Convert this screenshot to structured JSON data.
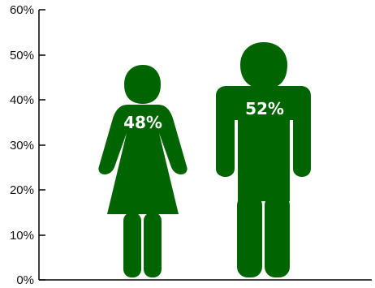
{
  "chart_data": {
    "type": "bar",
    "categories": [
      "female",
      "male"
    ],
    "values": [
      48,
      52
    ],
    "data_labels": [
      "48%",
      "52%"
    ],
    "icons": [
      "female-figure-icon",
      "male-figure-icon"
    ],
    "y_ticks": [
      "0%",
      "10%",
      "20%",
      "30%",
      "40%",
      "50%",
      "60%"
    ],
    "ylim": [
      0,
      60
    ],
    "grid": false,
    "legend": "none",
    "colors": {
      "bar": "#006400",
      "label": "#ffffff",
      "axis": "#000000"
    }
  }
}
